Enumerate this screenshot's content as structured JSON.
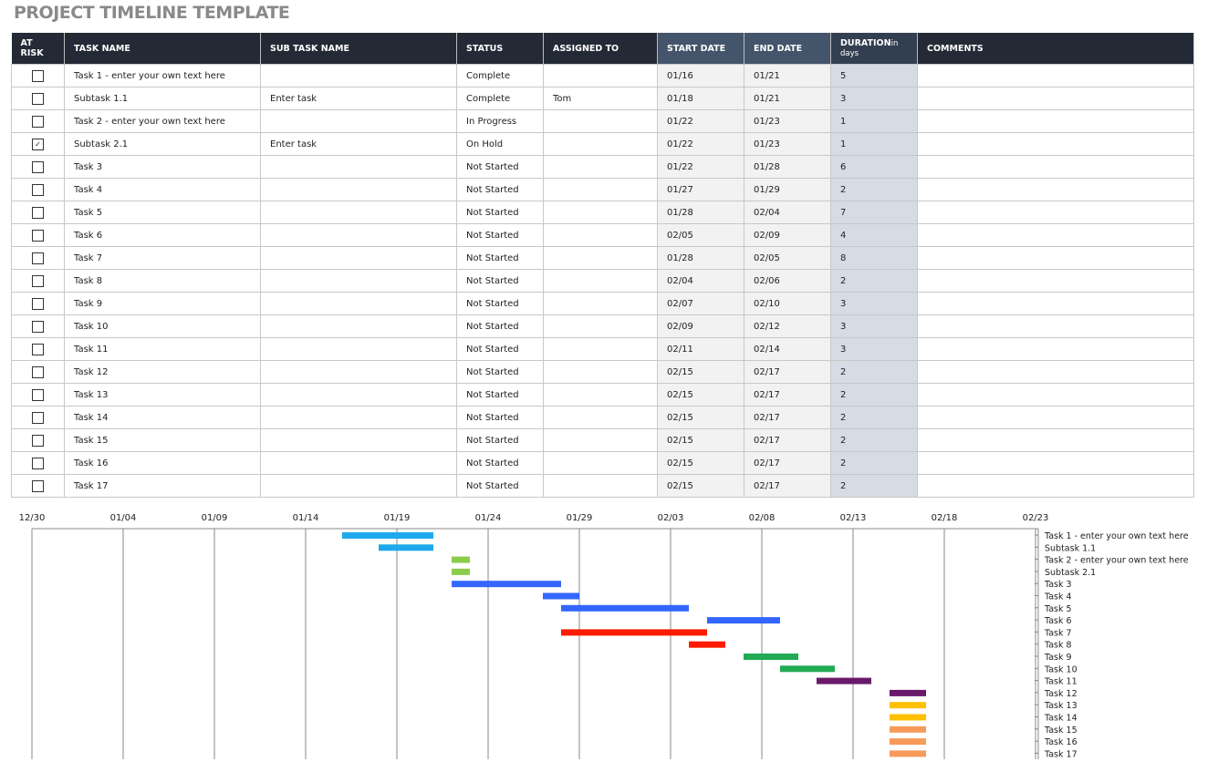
{
  "title": "PROJECT TIMELINE TEMPLATE",
  "headers": {
    "at_risk": "AT RISK",
    "task": "TASK NAME",
    "sub": "SUB TASK NAME",
    "status": "STATUS",
    "assigned": "ASSIGNED TO",
    "start": "START DATE",
    "end": "END DATE",
    "duration": "DURATION",
    "duration_unit": "in days",
    "comments": "COMMENTS"
  },
  "rows": [
    {
      "at_risk": false,
      "task": "Task 1 - enter your own text here",
      "sub": "",
      "status": "Complete",
      "assigned": "",
      "start": "01/16",
      "end": "01/21",
      "duration": "5",
      "comments": ""
    },
    {
      "at_risk": false,
      "task": "Subtask 1.1",
      "sub": "Enter task",
      "status": "Complete",
      "assigned": "Tom",
      "start": "01/18",
      "end": "01/21",
      "duration": "3",
      "comments": ""
    },
    {
      "at_risk": false,
      "task": "Task 2 - enter your own text here",
      "sub": "",
      "status": "In Progress",
      "assigned": "",
      "start": "01/22",
      "end": "01/23",
      "duration": "1",
      "comments": ""
    },
    {
      "at_risk": true,
      "task": "Subtask 2.1",
      "sub": "Enter task",
      "status": "On Hold",
      "assigned": "",
      "start": "01/22",
      "end": "01/23",
      "duration": "1",
      "comments": ""
    },
    {
      "at_risk": false,
      "task": "Task 3",
      "sub": "",
      "status": "Not Started",
      "assigned": "",
      "start": "01/22",
      "end": "01/28",
      "duration": "6",
      "comments": ""
    },
    {
      "at_risk": false,
      "task": "Task 4",
      "sub": "",
      "status": "Not Started",
      "assigned": "",
      "start": "01/27",
      "end": "01/29",
      "duration": "2",
      "comments": ""
    },
    {
      "at_risk": false,
      "task": "Task 5",
      "sub": "",
      "status": "Not Started",
      "assigned": "",
      "start": "01/28",
      "end": "02/04",
      "duration": "7",
      "comments": ""
    },
    {
      "at_risk": false,
      "task": "Task 6",
      "sub": "",
      "status": "Not Started",
      "assigned": "",
      "start": "02/05",
      "end": "02/09",
      "duration": "4",
      "comments": ""
    },
    {
      "at_risk": false,
      "task": "Task 7",
      "sub": "",
      "status": "Not Started",
      "assigned": "",
      "start": "01/28",
      "end": "02/05",
      "duration": "8",
      "comments": ""
    },
    {
      "at_risk": false,
      "task": "Task 8",
      "sub": "",
      "status": "Not Started",
      "assigned": "",
      "start": "02/04",
      "end": "02/06",
      "duration": "2",
      "comments": ""
    },
    {
      "at_risk": false,
      "task": "Task 9",
      "sub": "",
      "status": "Not Started",
      "assigned": "",
      "start": "02/07",
      "end": "02/10",
      "duration": "3",
      "comments": ""
    },
    {
      "at_risk": false,
      "task": "Task 10",
      "sub": "",
      "status": "Not Started",
      "assigned": "",
      "start": "02/09",
      "end": "02/12",
      "duration": "3",
      "comments": ""
    },
    {
      "at_risk": false,
      "task": "Task 11",
      "sub": "",
      "status": "Not Started",
      "assigned": "",
      "start": "02/11",
      "end": "02/14",
      "duration": "3",
      "comments": ""
    },
    {
      "at_risk": false,
      "task": "Task 12",
      "sub": "",
      "status": "Not Started",
      "assigned": "",
      "start": "02/15",
      "end": "02/17",
      "duration": "2",
      "comments": ""
    },
    {
      "at_risk": false,
      "task": "Task 13",
      "sub": "",
      "status": "Not Started",
      "assigned": "",
      "start": "02/15",
      "end": "02/17",
      "duration": "2",
      "comments": ""
    },
    {
      "at_risk": false,
      "task": "Task 14",
      "sub": "",
      "status": "Not Started",
      "assigned": "",
      "start": "02/15",
      "end": "02/17",
      "duration": "2",
      "comments": ""
    },
    {
      "at_risk": false,
      "task": "Task 15",
      "sub": "",
      "status": "Not Started",
      "assigned": "",
      "start": "02/15",
      "end": "02/17",
      "duration": "2",
      "comments": ""
    },
    {
      "at_risk": false,
      "task": "Task 16",
      "sub": "",
      "status": "Not Started",
      "assigned": "",
      "start": "02/15",
      "end": "02/17",
      "duration": "2",
      "comments": ""
    },
    {
      "at_risk": false,
      "task": "Task 17",
      "sub": "",
      "status": "Not Started",
      "assigned": "",
      "start": "02/15",
      "end": "02/17",
      "duration": "2",
      "comments": ""
    }
  ],
  "chart_data": {
    "type": "gantt",
    "x_ticks": [
      "12/30",
      "01/04",
      "01/09",
      "01/14",
      "01/19",
      "01/24",
      "01/29",
      "02/03",
      "02/08",
      "02/13",
      "02/18",
      "02/23"
    ],
    "grid": true,
    "legend": "right",
    "bars": [
      {
        "label": "Task 1 - enter your own text here",
        "start": "01/16",
        "duration": 5,
        "color": "#1fa9ec"
      },
      {
        "label": "Subtask 1.1",
        "start": "01/18",
        "duration": 3,
        "color": "#1fa9ec"
      },
      {
        "label": "Task 2 - enter your own text here",
        "start": "01/22",
        "duration": 1,
        "color": "#8ccc4c"
      },
      {
        "label": "Subtask 2.1",
        "start": "01/22",
        "duration": 1,
        "color": "#8ccc4c"
      },
      {
        "label": "Task 3",
        "start": "01/22",
        "duration": 6,
        "color": "#3366ff"
      },
      {
        "label": "Task 4",
        "start": "01/27",
        "duration": 2,
        "color": "#3366ff"
      },
      {
        "label": "Task 5",
        "start": "01/28",
        "duration": 7,
        "color": "#3366ff"
      },
      {
        "label": "Task 6",
        "start": "02/05",
        "duration": 4,
        "color": "#3366ff"
      },
      {
        "label": "Task 7",
        "start": "01/28",
        "duration": 8,
        "color": "#ff1a00"
      },
      {
        "label": "Task 8",
        "start": "02/04",
        "duration": 2,
        "color": "#ff1a00"
      },
      {
        "label": "Task 9",
        "start": "02/07",
        "duration": 3,
        "color": "#22aa55"
      },
      {
        "label": "Task 10",
        "start": "02/09",
        "duration": 3,
        "color": "#22aa55"
      },
      {
        "label": "Task 11",
        "start": "02/11",
        "duration": 3,
        "color": "#6a1a6a"
      },
      {
        "label": "Task 12",
        "start": "02/15",
        "duration": 2,
        "color": "#6a1a6a"
      },
      {
        "label": "Task 13",
        "start": "02/15",
        "duration": 2,
        "color": "#ffc000"
      },
      {
        "label": "Task 14",
        "start": "02/15",
        "duration": 2,
        "color": "#ffc000"
      },
      {
        "label": "Task 15",
        "start": "02/15",
        "duration": 2,
        "color": "#f79a5a"
      },
      {
        "label": "Task 16",
        "start": "02/15",
        "duration": 2,
        "color": "#f79a5a"
      },
      {
        "label": "Task 17",
        "start": "02/15",
        "duration": 2,
        "color": "#f79a5a"
      }
    ]
  }
}
